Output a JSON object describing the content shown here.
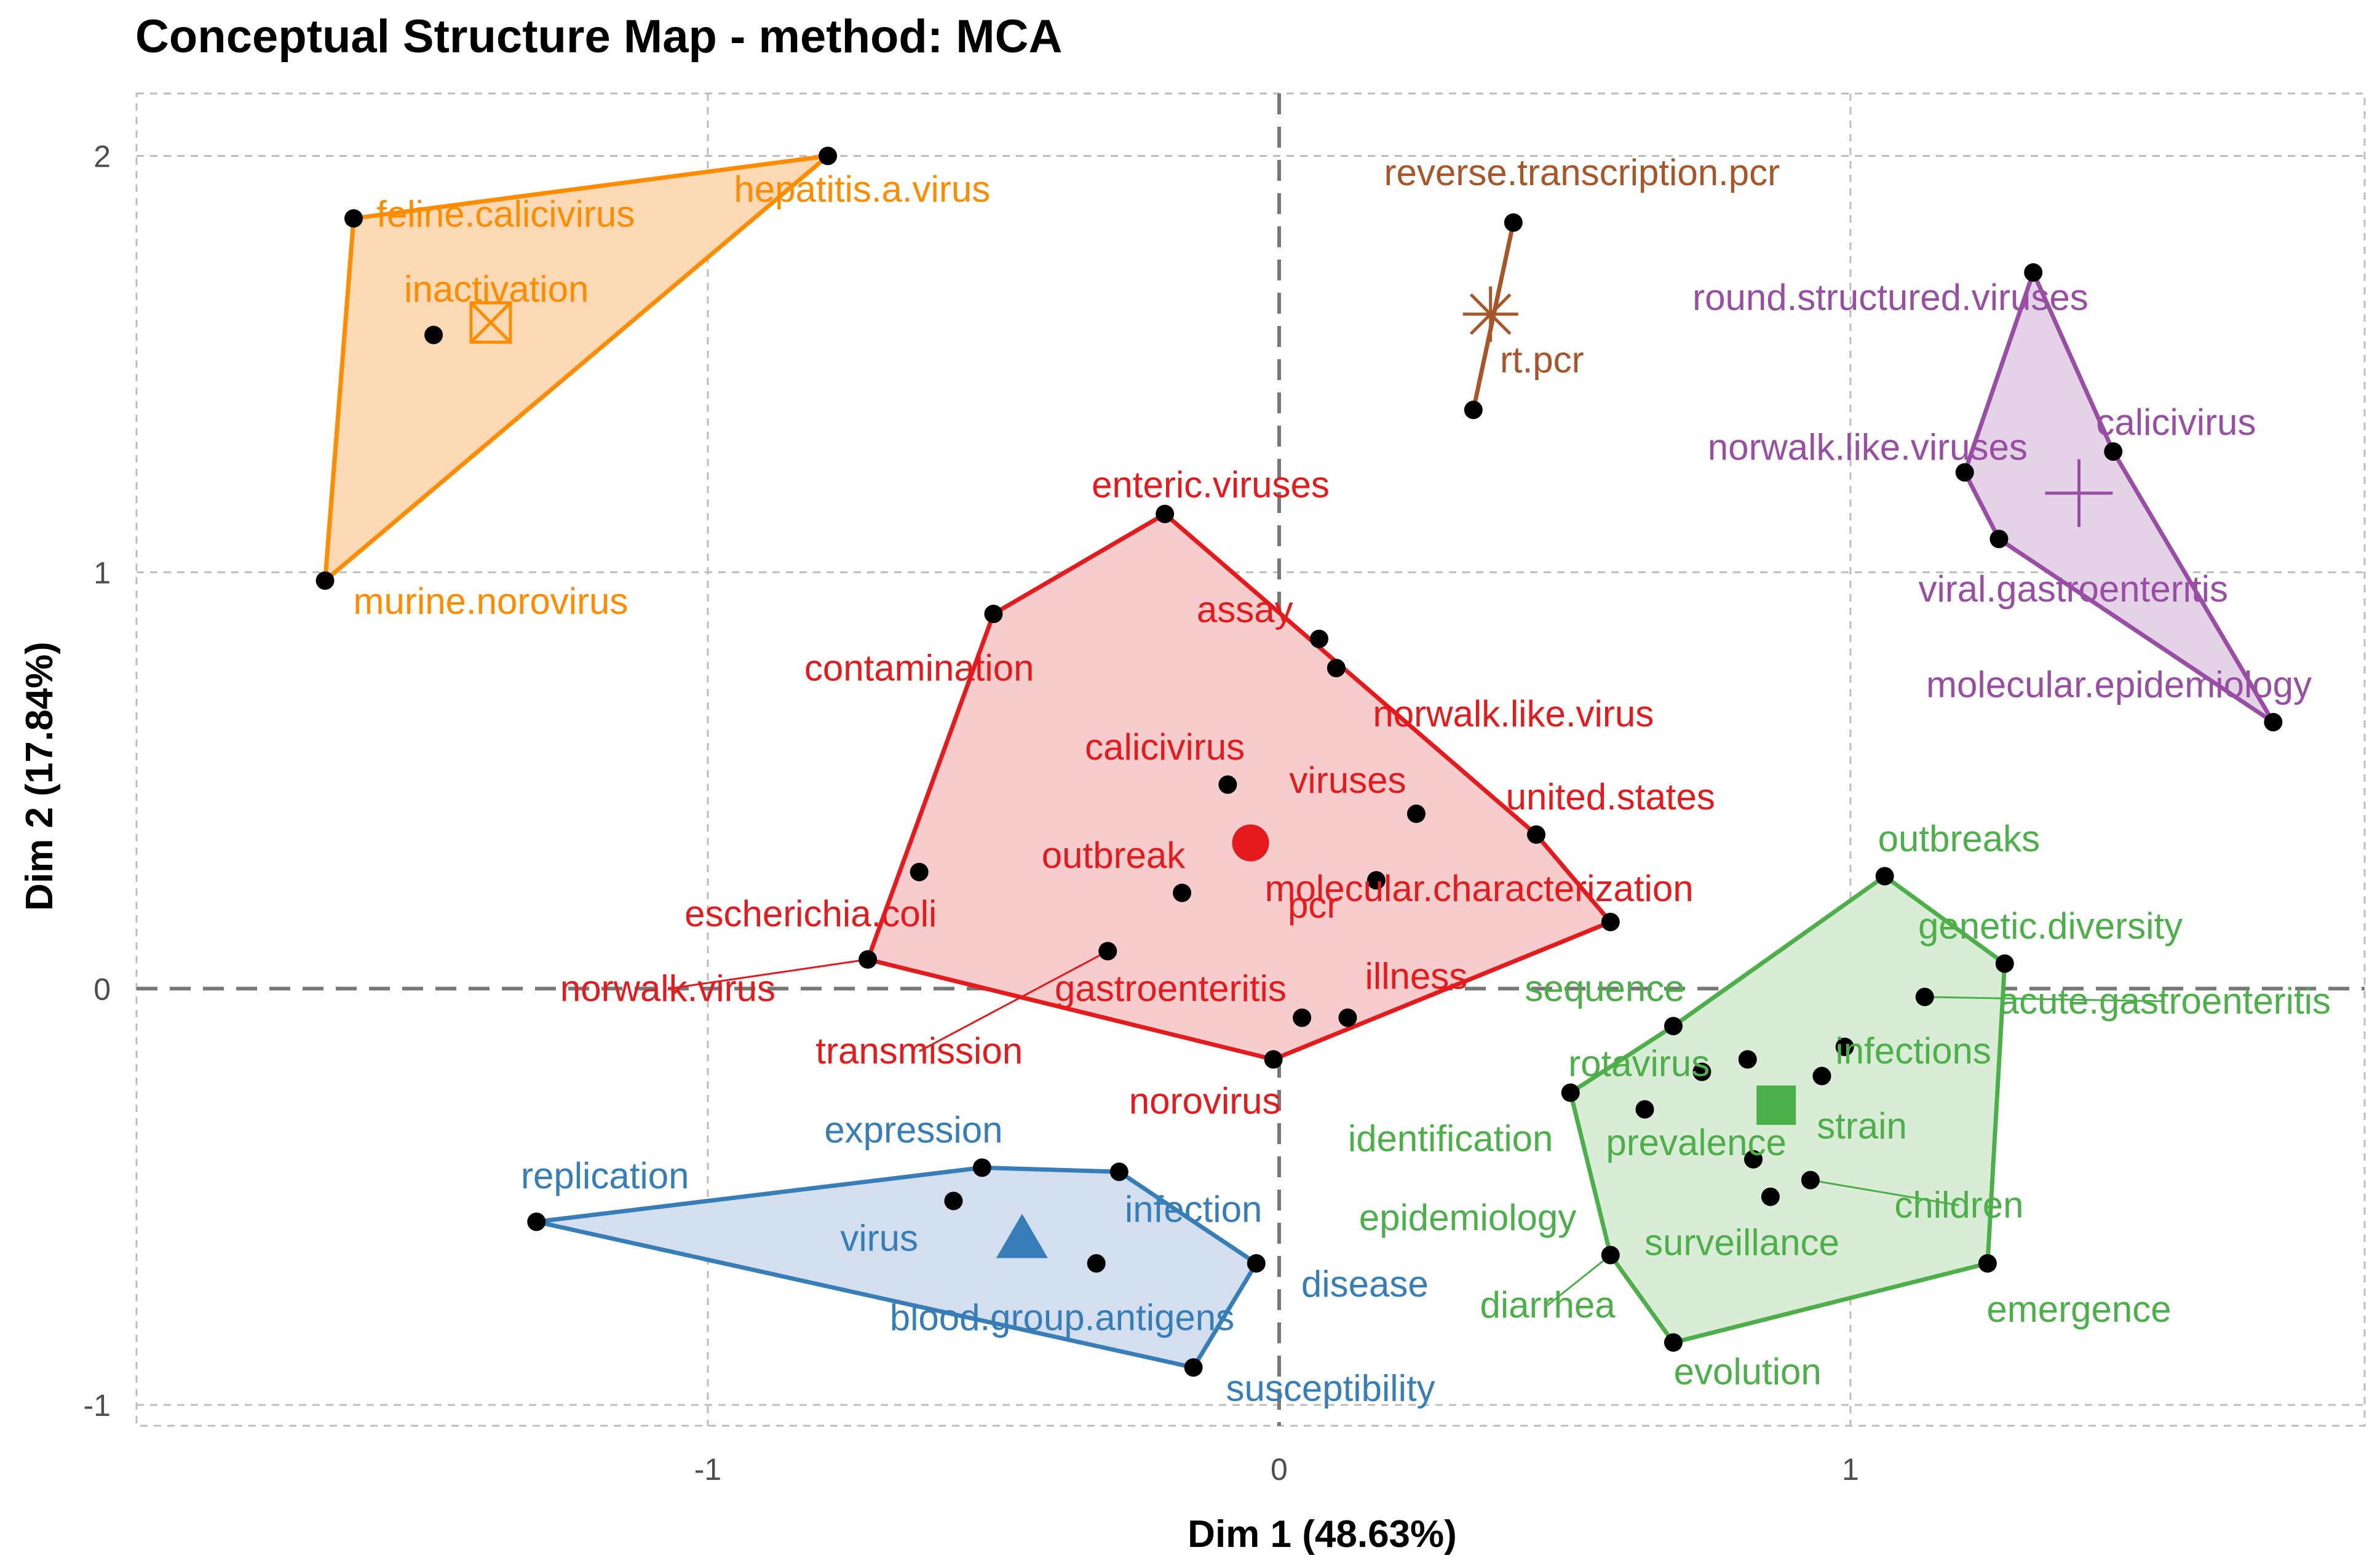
{
  "chart_data": {
    "type": "scatter",
    "title": "Conceptual Structure Map - method: MCA",
    "xlabel": "Dim 1 (48.63%)",
    "ylabel": "Dim 2 (17.84%)",
    "xlim": [
      -2.0,
      1.9
    ],
    "ylim": [
      -1.05,
      2.15
    ],
    "x_ticks": [
      -1,
      0,
      1
    ],
    "x_tick_labels": [
      "-1",
      "0",
      "1"
    ],
    "y_ticks": [
      -1,
      0,
      1,
      2
    ],
    "y_tick_labels": [
      "-1",
      "0",
      "1",
      "2"
    ],
    "clusters": [
      {
        "name": "orange",
        "color": "#ff8c00",
        "fill": "#fbd9b5",
        "marker": "square-cross",
        "centroid": [
          -1.38,
          1.6
        ],
        "hull": [
          "feline.calicivirus",
          "hepatitis.a.virus",
          "murine.norovirus"
        ],
        "points": [
          {
            "label": "feline.calicivirus",
            "x": -1.62,
            "y": 1.85,
            "lx": -1.58,
            "ly": 1.83,
            "anchor": "start"
          },
          {
            "label": "hepatitis.a.virus",
            "x": -0.79,
            "y": 2.0,
            "lx": -0.73,
            "ly": 1.89,
            "anchor": "middle"
          },
          {
            "label": "inactivation",
            "x": -1.48,
            "y": 1.57,
            "lx": -1.37,
            "ly": 1.65,
            "anchor": "middle"
          },
          {
            "label": "murine.norovirus",
            "x": -1.67,
            "y": 0.98,
            "lx": -1.38,
            "ly": 0.9,
            "anchor": "middle"
          }
        ]
      },
      {
        "name": "brown",
        "color": "#a65628",
        "fill": "none",
        "marker": "asterisk",
        "centroid": [
          0.37,
          1.62
        ],
        "hull": [
          "reverse.transcription.pcr",
          "rt.pcr"
        ],
        "points": [
          {
            "label": "reverse.transcription.pcr",
            "x": 0.41,
            "y": 1.84,
            "lx": 0.53,
            "ly": 1.93,
            "anchor": "middle"
          },
          {
            "label": "rt.pcr",
            "x": 0.34,
            "y": 1.39,
            "lx": 0.46,
            "ly": 1.48,
            "anchor": "middle"
          }
        ]
      },
      {
        "name": "purple",
        "color": "#984ea3",
        "fill": "#e4d3e6",
        "marker": "plus",
        "centroid": [
          1.4,
          1.19
        ],
        "hull": [
          "round.structured.viruses",
          "calicivirus",
          "molecular.epidemiology",
          "viral.gastroenteritis",
          "norwalk.like.viruses"
        ],
        "points": [
          {
            "label": "round.structured.viruses",
            "x": 1.32,
            "y": 1.72,
            "lx": 1.07,
            "ly": 1.63,
            "anchor": "middle"
          },
          {
            "label": "calicivirus",
            "x": 1.46,
            "y": 1.29,
            "lx": 1.57,
            "ly": 1.33,
            "anchor": "middle"
          },
          {
            "label": "norwalk.like.viruses",
            "x": 1.2,
            "y": 1.24,
            "lx": 1.03,
            "ly": 1.27,
            "anchor": "middle"
          },
          {
            "label": "viral.gastroenteritis",
            "x": 1.26,
            "y": 1.08,
            "lx": 1.39,
            "ly": 0.93,
            "anchor": "middle"
          },
          {
            "label": "molecular.epidemiology",
            "x": 1.74,
            "y": 0.64,
            "lx": 1.47,
            "ly": 0.7,
            "anchor": "middle"
          }
        ]
      },
      {
        "name": "red",
        "color": "#e41a1c",
        "fill": "#f7cccd",
        "marker": "circle",
        "centroid": [
          -0.05,
          0.35
        ],
        "hull": [
          "enteric.viruses",
          "united.states",
          "molecular.characterization",
          "norovirus",
          "norwalk.virus",
          "contamination"
        ],
        "points": [
          {
            "label": "enteric.viruses",
            "x": -0.2,
            "y": 1.14,
            "lx": -0.12,
            "ly": 1.18,
            "anchor": "middle"
          },
          {
            "label": "contamination",
            "x": -0.5,
            "y": 0.9,
            "lx": -0.63,
            "ly": 0.74,
            "anchor": "middle"
          },
          {
            "label": "assay",
            "x": 0.07,
            "y": 0.84,
            "lx": -0.06,
            "ly": 0.88,
            "anchor": "middle"
          },
          {
            "label": "norwalk.like.virus",
            "x": 0.1,
            "y": 0.77,
            "lx": 0.41,
            "ly": 0.63,
            "anchor": "middle"
          },
          {
            "label": "calicivirus",
            "x": -0.09,
            "y": 0.49,
            "lx": -0.2,
            "ly": 0.55,
            "anchor": "middle"
          },
          {
            "label": "viruses",
            "x": 0.24,
            "y": 0.42,
            "lx": 0.12,
            "ly": 0.47,
            "anchor": "middle"
          },
          {
            "label": "united.states",
            "x": 0.45,
            "y": 0.37,
            "lx": 0.58,
            "ly": 0.43,
            "anchor": "middle"
          },
          {
            "label": "escherichia.coli",
            "x": -0.63,
            "y": 0.28,
            "lx": -0.82,
            "ly": 0.15,
            "anchor": "middle"
          },
          {
            "label": "outbreak",
            "x": -0.17,
            "y": 0.23,
            "lx": -0.29,
            "ly": 0.29,
            "anchor": "middle"
          },
          {
            "label": "pcr",
            "x": 0.17,
            "y": 0.26,
            "lx": 0.06,
            "ly": 0.17,
            "anchor": "middle"
          },
          {
            "label": "molecular.characterization",
            "x": 0.58,
            "y": 0.16,
            "lx": 0.35,
            "ly": 0.21,
            "anchor": "middle"
          },
          {
            "label": "norwalk.virus",
            "x": -0.72,
            "y": 0.07,
            "lx": -1.07,
            "ly": -0.03,
            "anchor": "middle",
            "leader": true
          },
          {
            "label": "transmission",
            "x": -0.3,
            "y": 0.09,
            "lx": -0.63,
            "ly": -0.18,
            "anchor": "middle",
            "leader": true
          },
          {
            "label": "gastroenteritis",
            "x": 0.04,
            "y": -0.07,
            "lx": -0.19,
            "ly": -0.03,
            "anchor": "middle"
          },
          {
            "label": "illness",
            "x": 0.12,
            "y": -0.07,
            "lx": 0.24,
            "ly": 0.0,
            "anchor": "middle"
          },
          {
            "label": "norovirus",
            "x": -0.01,
            "y": -0.17,
            "lx": -0.13,
            "ly": -0.3,
            "anchor": "middle"
          }
        ]
      },
      {
        "name": "green",
        "color": "#4daf4a",
        "fill": "#d9ecd6",
        "marker": "square",
        "centroid": [
          0.87,
          -0.28
        ],
        "hull": [
          "outbreaks",
          "genetic.diversity",
          "emergence",
          "evolution",
          "diarrhea",
          "rotavirus",
          "sequence"
        ],
        "points": [
          {
            "label": "outbreaks",
            "x": 1.06,
            "y": 0.27,
            "lx": 1.19,
            "ly": 0.33,
            "anchor": "middle"
          },
          {
            "label": "genetic.diversity",
            "x": 1.27,
            "y": 0.06,
            "lx": 1.35,
            "ly": 0.12,
            "anchor": "middle"
          },
          {
            "label": "acute.gastroenteritis",
            "x": 1.13,
            "y": -0.02,
            "lx": 1.55,
            "ly": -0.06,
            "anchor": "middle",
            "leader": true
          },
          {
            "label": "sequence",
            "x": 0.69,
            "y": -0.09,
            "lx": 0.57,
            "ly": -0.03,
            "anchor": "middle"
          },
          {
            "label": "infections",
            "x": 0.99,
            "y": -0.14,
            "lx": 1.11,
            "ly": -0.18,
            "anchor": "middle"
          },
          {
            "label": "rotavirus",
            "x": 0.51,
            "y": -0.25,
            "lx": 0.63,
            "ly": -0.21,
            "anchor": "middle"
          },
          {
            "label": "identification",
            "x": 0.64,
            "y": -0.29,
            "lx": 0.3,
            "ly": -0.39,
            "anchor": "middle"
          },
          {
            "label": "prevalence",
            "x": 0.83,
            "y": -0.41,
            "lx": 0.73,
            "ly": -0.4,
            "anchor": "middle"
          },
          {
            "label": "strain",
            "x": 0.95,
            "y": -0.21,
            "lx": 1.02,
            "ly": -0.36,
            "anchor": "middle"
          },
          {
            "label": "children",
            "x": 0.93,
            "y": -0.46,
            "lx": 1.19,
            "ly": -0.55,
            "anchor": "middle",
            "leader": true
          },
          {
            "label": "epidemiology",
            "x": 0.86,
            "y": -0.5,
            "lx": 0.33,
            "ly": -0.58,
            "anchor": "middle"
          },
          {
            "label": "surveillance",
            "x": 0.82,
            "y": -0.17,
            "lx": 0.81,
            "ly": -0.64,
            "anchor": "middle"
          },
          {
            "label": "diarrhea",
            "x": 0.58,
            "y": -0.64,
            "lx": 0.47,
            "ly": -0.79,
            "anchor": "middle",
            "leader": true
          },
          {
            "label": "emergence",
            "x": 1.24,
            "y": -0.66,
            "lx": 1.4,
            "ly": -0.8,
            "anchor": "middle"
          },
          {
            "label": "evolution",
            "x": 0.69,
            "y": -0.85,
            "lx": 0.82,
            "ly": -0.95,
            "anchor": "middle"
          },
          {
            "label": "",
            "x": 0.74,
            "y": -0.2,
            "lx": 0,
            "ly": 0,
            "anchor": "middle"
          }
        ]
      },
      {
        "name": "blue",
        "color": "#377eb8",
        "fill": "#d3dfee",
        "marker": "triangle",
        "centroid": [
          -0.45,
          -0.6
        ],
        "hull": [
          "replication",
          "expression",
          "infection",
          "disease",
          "susceptibility"
        ],
        "points": [
          {
            "label": "expression",
            "x": -0.52,
            "y": -0.43,
            "lx": -0.64,
            "ly": -0.37,
            "anchor": "middle"
          },
          {
            "label": "replication",
            "x": -1.3,
            "y": -0.56,
            "lx": -1.18,
            "ly": -0.48,
            "anchor": "middle"
          },
          {
            "label": "infection",
            "x": -0.28,
            "y": -0.44,
            "lx": -0.15,
            "ly": -0.56,
            "anchor": "middle"
          },
          {
            "label": "virus",
            "x": -0.57,
            "y": -0.51,
            "lx": -0.7,
            "ly": -0.63,
            "anchor": "middle"
          },
          {
            "label": "blood.group.antigens",
            "x": -0.32,
            "y": -0.66,
            "lx": -0.38,
            "ly": -0.82,
            "anchor": "middle"
          },
          {
            "label": "disease",
            "x": -0.04,
            "y": -0.66,
            "lx": 0.15,
            "ly": -0.74,
            "anchor": "middle"
          },
          {
            "label": "susceptibility",
            "x": -0.15,
            "y": -0.91,
            "lx": 0.09,
            "ly": -0.99,
            "anchor": "middle"
          }
        ]
      }
    ]
  }
}
